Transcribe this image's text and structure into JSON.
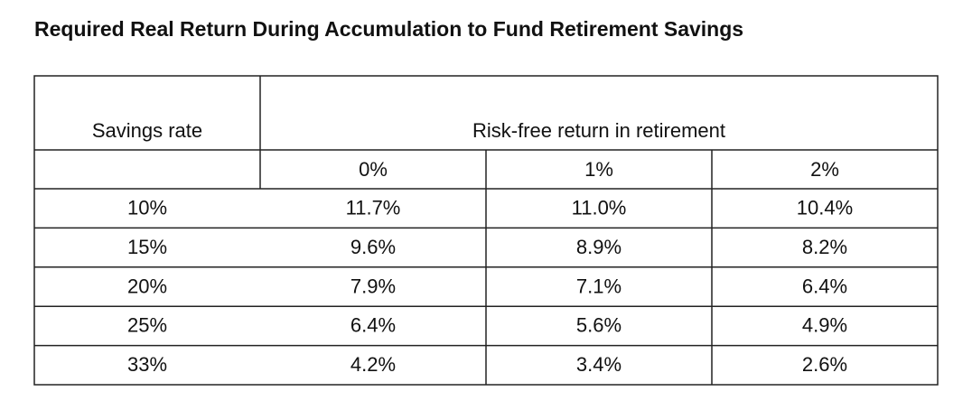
{
  "title": "Required Real Return During Accumulation to Fund Retirement Savings",
  "table": {
    "row_header": "Savings rate",
    "group_header": "Risk-free return in retirement",
    "columns": [
      "0%",
      "1%",
      "2%"
    ],
    "rows": [
      [
        "10%",
        "11.7%",
        "11.0%",
        "10.4%"
      ],
      [
        "15%",
        "9.6%",
        "8.9%",
        "8.2%"
      ],
      [
        "20%",
        "7.9%",
        "7.1%",
        "6.4%"
      ],
      [
        "25%",
        "6.4%",
        "5.6%",
        "4.9%"
      ],
      [
        "33%",
        "4.2%",
        "3.4%",
        "2.6%"
      ]
    ]
  }
}
